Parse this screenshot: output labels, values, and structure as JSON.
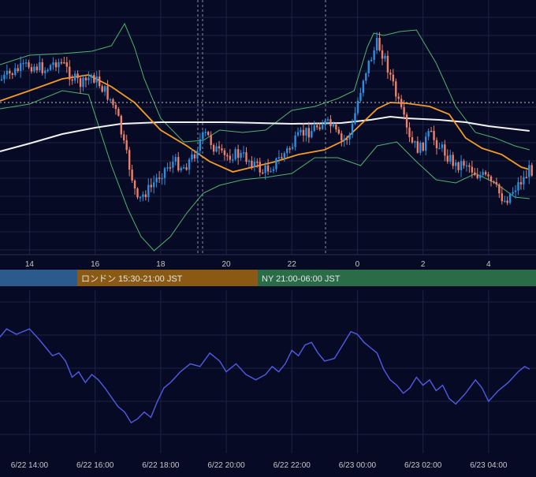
{
  "colors": {
    "background": "#060a24",
    "grid": "#1c2346",
    "bull": "#2a8fe0",
    "bear": "#f0806a",
    "bollinger": "#4fb36b",
    "ma_short": "#f59a23",
    "ma_long": "#f2f2f2",
    "oscillator": "#4f5ce6",
    "tokyo_session": "#2d5a8c",
    "london_session": "#8a5a14",
    "ny_session": "#2a6b48",
    "ref_line": "#bfbfbf"
  },
  "sessions": [
    {
      "label": "",
      "color_key": "tokyo_session"
    },
    {
      "label": "ロンドン 15:30-21:00 JST",
      "color_key": "london_session"
    },
    {
      "label": "NY 21:00-06:00 JST",
      "color_key": "ny_session"
    }
  ],
  "chart_data": [
    {
      "type": "candlestick",
      "title": "",
      "x_unit": "hour (JST)",
      "x_range": [
        13.1,
        5.25
      ],
      "x_tick_labels": [
        "14",
        "16",
        "18",
        "20",
        "22",
        "0",
        "2",
        "4"
      ],
      "reference_level": "dotted horizontal line near the candle highs at ~20:00 and ~1:00",
      "vertical_markers": [
        "~19:15 (dashed pair)",
        "~23:00 (dashed)"
      ],
      "price_trace": [
        [
          13.1,
          102
        ],
        [
          13.5,
          92
        ],
        [
          14.0,
          82
        ],
        [
          14.5,
          88
        ],
        [
          14.8,
          78
        ],
        [
          15.0,
          80
        ],
        [
          15.3,
          98
        ],
        [
          15.6,
          108
        ],
        [
          15.9,
          95
        ],
        [
          16.2,
          110
        ],
        [
          16.5,
          128
        ],
        [
          16.7,
          150
        ],
        [
          16.9,
          188
        ],
        [
          17.1,
          220
        ],
        [
          17.3,
          258
        ],
        [
          17.5,
          245
        ],
        [
          17.7,
          238
        ],
        [
          17.9,
          225
        ],
        [
          18.1,
          215
        ],
        [
          18.4,
          205
        ],
        [
          18.7,
          212
        ],
        [
          19.0,
          198
        ],
        [
          19.2,
          178
        ],
        [
          19.4,
          170
        ],
        [
          19.6,
          185
        ],
        [
          19.9,
          200
        ],
        [
          20.2,
          195
        ],
        [
          20.5,
          198
        ],
        [
          20.8,
          205
        ],
        [
          21.1,
          218
        ],
        [
          21.4,
          210
        ],
        [
          21.7,
          198
        ],
        [
          22.0,
          185
        ],
        [
          22.3,
          170
        ],
        [
          22.6,
          165
        ],
        [
          22.9,
          155
        ],
        [
          23.2,
          160
        ],
        [
          23.5,
          180
        ],
        [
          23.8,
          170
        ],
        [
          0.0,
          130
        ],
        [
          0.2,
          95
        ],
        [
          0.4,
          75
        ],
        [
          0.6,
          55
        ],
        [
          0.8,
          70
        ],
        [
          1.0,
          95
        ],
        [
          1.2,
          125
        ],
        [
          1.4,
          150
        ],
        [
          1.6,
          180
        ],
        [
          1.9,
          190
        ],
        [
          2.2,
          170
        ],
        [
          2.5,
          185
        ],
        [
          2.8,
          200
        ],
        [
          3.0,
          210
        ],
        [
          3.3,
          205
        ],
        [
          3.6,
          220
        ],
        [
          3.9,
          225
        ],
        [
          4.2,
          238
        ],
        [
          4.5,
          255
        ],
        [
          4.8,
          238
        ],
        [
          5.1,
          225
        ],
        [
          5.25,
          215
        ]
      ],
      "overlays": {
        "ma_short": [
          [
            13.1,
            128
          ],
          [
            14.0,
            115
          ],
          [
            15.0,
            100
          ],
          [
            15.8,
            95
          ],
          [
            16.5,
            110
          ],
          [
            17.2,
            130
          ],
          [
            18.0,
            165
          ],
          [
            18.8,
            185
          ],
          [
            19.5,
            205
          ],
          [
            20.2,
            218
          ],
          [
            20.8,
            212
          ],
          [
            21.5,
            205
          ],
          [
            22.2,
            196
          ],
          [
            23.0,
            190
          ],
          [
            23.6,
            178
          ],
          [
            0.1,
            158
          ],
          [
            0.6,
            138
          ],
          [
            1.0,
            130
          ],
          [
            1.5,
            131
          ],
          [
            2.2,
            135
          ],
          [
            2.8,
            145
          ],
          [
            3.3,
            175
          ],
          [
            3.8,
            188
          ],
          [
            4.4,
            196
          ],
          [
            5.0,
            212
          ],
          [
            5.25,
            215
          ]
        ],
        "ma_long": [
          [
            13.1,
            192
          ],
          [
            14.0,
            182
          ],
          [
            15.0,
            170
          ],
          [
            16.0,
            162
          ],
          [
            16.8,
            157
          ],
          [
            18.0,
            155
          ],
          [
            20.0,
            155
          ],
          [
            22.0,
            157
          ],
          [
            23.5,
            156
          ],
          [
            0.4,
            152
          ],
          [
            1.0,
            148
          ],
          [
            1.5,
            150
          ],
          [
            2.5,
            152
          ],
          [
            3.3,
            155
          ],
          [
            4.0,
            160
          ],
          [
            5.25,
            166
          ]
        ],
        "bollinger_upper": [
          [
            13.1,
            82
          ],
          [
            14.0,
            70
          ],
          [
            15.0,
            68
          ],
          [
            15.9,
            65
          ],
          [
            16.5,
            58
          ],
          [
            16.9,
            30
          ],
          [
            17.2,
            60
          ],
          [
            17.5,
            100
          ],
          [
            18.0,
            150
          ],
          [
            18.7,
            180
          ],
          [
            19.3,
            178
          ],
          [
            19.8,
            165
          ],
          [
            20.5,
            168
          ],
          [
            21.2,
            165
          ],
          [
            22.0,
            140
          ],
          [
            22.7,
            135
          ],
          [
            23.4,
            125
          ],
          [
            23.9,
            115
          ],
          [
            0.3,
            60
          ],
          [
            0.5,
            42
          ],
          [
            0.8,
            45
          ],
          [
            1.3,
            40
          ],
          [
            1.8,
            38
          ],
          [
            2.4,
            80
          ],
          [
            3.0,
            135
          ],
          [
            3.6,
            168
          ],
          [
            4.2,
            175
          ],
          [
            4.8,
            185
          ],
          [
            5.25,
            190
          ]
        ],
        "bollinger_lower": [
          [
            13.1,
            138
          ],
          [
            14.0,
            132
          ],
          [
            15.0,
            115
          ],
          [
            15.8,
            120
          ],
          [
            16.5,
            210
          ],
          [
            17.0,
            265
          ],
          [
            17.4,
            300
          ],
          [
            17.8,
            318
          ],
          [
            18.3,
            300
          ],
          [
            18.8,
            270
          ],
          [
            19.3,
            245
          ],
          [
            19.8,
            235
          ],
          [
            20.5,
            228
          ],
          [
            21.2,
            225
          ],
          [
            22.0,
            220
          ],
          [
            22.7,
            200
          ],
          [
            23.4,
            200
          ],
          [
            0.1,
            210
          ],
          [
            0.6,
            185
          ],
          [
            1.2,
            180
          ],
          [
            1.8,
            205
          ],
          [
            2.4,
            228
          ],
          [
            3.0,
            232
          ],
          [
            3.6,
            220
          ],
          [
            4.2,
            232
          ],
          [
            4.8,
            250
          ],
          [
            5.25,
            252
          ]
        ]
      }
    },
    {
      "type": "line",
      "title": "",
      "x_unit": "datetime",
      "x_tick_labels": [
        "6/22 14:00",
        "6/22 16:00",
        "6/22 18:00",
        "6/22 20:00",
        "6/22 22:00",
        "6/23 00:00",
        "6/23 02:00",
        "6/23 04:00"
      ],
      "y_range": [
        0,
        1
      ],
      "series": [
        {
          "name": "",
          "points": [
            [
              13.1,
              0.78
            ],
            [
              13.3,
              0.84
            ],
            [
              13.6,
              0.8
            ],
            [
              14.0,
              0.84
            ],
            [
              14.3,
              0.76
            ],
            [
              14.5,
              0.7
            ],
            [
              14.7,
              0.64
            ],
            [
              14.9,
              0.66
            ],
            [
              15.1,
              0.6
            ],
            [
              15.3,
              0.48
            ],
            [
              15.5,
              0.52
            ],
            [
              15.7,
              0.44
            ],
            [
              15.9,
              0.5
            ],
            [
              16.1,
              0.46
            ],
            [
              16.3,
              0.4
            ],
            [
              16.5,
              0.33
            ],
            [
              16.7,
              0.26
            ],
            [
              16.9,
              0.22
            ],
            [
              17.1,
              0.14
            ],
            [
              17.3,
              0.17
            ],
            [
              17.5,
              0.22
            ],
            [
              17.7,
              0.18
            ],
            [
              17.9,
              0.3
            ],
            [
              18.1,
              0.4
            ],
            [
              18.3,
              0.44
            ],
            [
              18.6,
              0.52
            ],
            [
              18.9,
              0.58
            ],
            [
              19.2,
              0.56
            ],
            [
              19.5,
              0.66
            ],
            [
              19.8,
              0.6
            ],
            [
              20.0,
              0.52
            ],
            [
              20.3,
              0.58
            ],
            [
              20.6,
              0.5
            ],
            [
              20.9,
              0.46
            ],
            [
              21.2,
              0.5
            ],
            [
              21.4,
              0.56
            ],
            [
              21.6,
              0.52
            ],
            [
              21.8,
              0.58
            ],
            [
              22.0,
              0.68
            ],
            [
              22.2,
              0.64
            ],
            [
              22.4,
              0.72
            ],
            [
              22.6,
              0.74
            ],
            [
              22.8,
              0.66
            ],
            [
              23.0,
              0.6
            ],
            [
              23.3,
              0.62
            ],
            [
              23.6,
              0.74
            ],
            [
              23.8,
              0.82
            ],
            [
              0.0,
              0.8
            ],
            [
              0.2,
              0.74
            ],
            [
              0.4,
              0.7
            ],
            [
              0.6,
              0.66
            ],
            [
              0.8,
              0.54
            ],
            [
              1.0,
              0.46
            ],
            [
              1.2,
              0.42
            ],
            [
              1.4,
              0.36
            ],
            [
              1.6,
              0.4
            ],
            [
              1.8,
              0.48
            ],
            [
              2.0,
              0.42
            ],
            [
              2.2,
              0.46
            ],
            [
              2.4,
              0.38
            ],
            [
              2.6,
              0.42
            ],
            [
              2.8,
              0.32
            ],
            [
              3.0,
              0.28
            ],
            [
              3.3,
              0.36
            ],
            [
              3.6,
              0.46
            ],
            [
              3.8,
              0.4
            ],
            [
              4.0,
              0.3
            ],
            [
              4.3,
              0.38
            ],
            [
              4.6,
              0.44
            ],
            [
              4.9,
              0.52
            ],
            [
              5.1,
              0.56
            ],
            [
              5.25,
              0.54
            ]
          ]
        }
      ]
    }
  ]
}
